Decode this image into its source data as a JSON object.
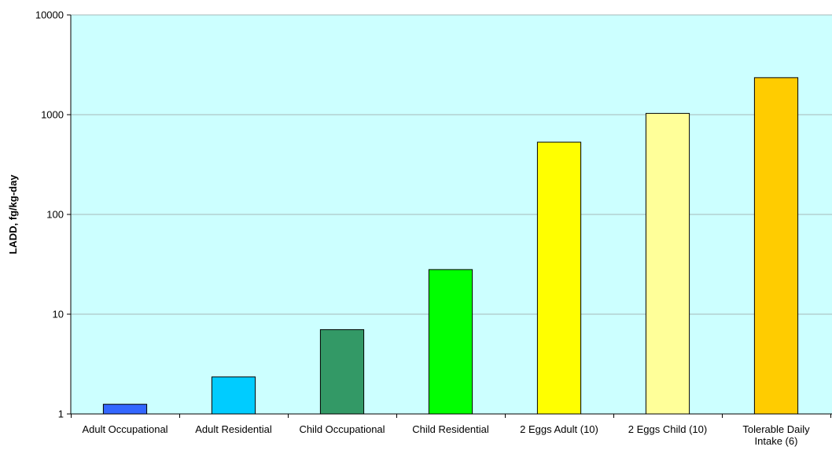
{
  "chart_data": {
    "type": "bar",
    "title": "",
    "xlabel": "",
    "ylabel": "LADD, fg/kg-day",
    "y_scale": "log",
    "ylim": [
      1,
      10000
    ],
    "y_ticks": [
      1,
      10,
      100,
      1000,
      10000
    ],
    "y_tick_labels": [
      "1",
      "10",
      "100",
      "1000",
      "10000"
    ],
    "grid": "horizontal major gridlines",
    "legend": "none",
    "plot_background": "#ccffff",
    "categories": [
      [
        "Adult Occupational"
      ],
      [
        "Adult Residential"
      ],
      [
        "Child Occupational"
      ],
      [
        "Child Residential"
      ],
      [
        "2 Eggs Adult (10)"
      ],
      [
        "2 Eggs Child (10)"
      ],
      [
        "Tolerable Daily",
        "Intake (6)"
      ]
    ],
    "values": [
      1.25,
      2.35,
      7.0,
      28,
      530,
      1030,
      2350
    ],
    "bar_colors": [
      "#3366ff",
      "#00ccff",
      "#339966",
      "#00ff00",
      "#ffff00",
      "#ffff99",
      "#ffcc00"
    ]
  }
}
